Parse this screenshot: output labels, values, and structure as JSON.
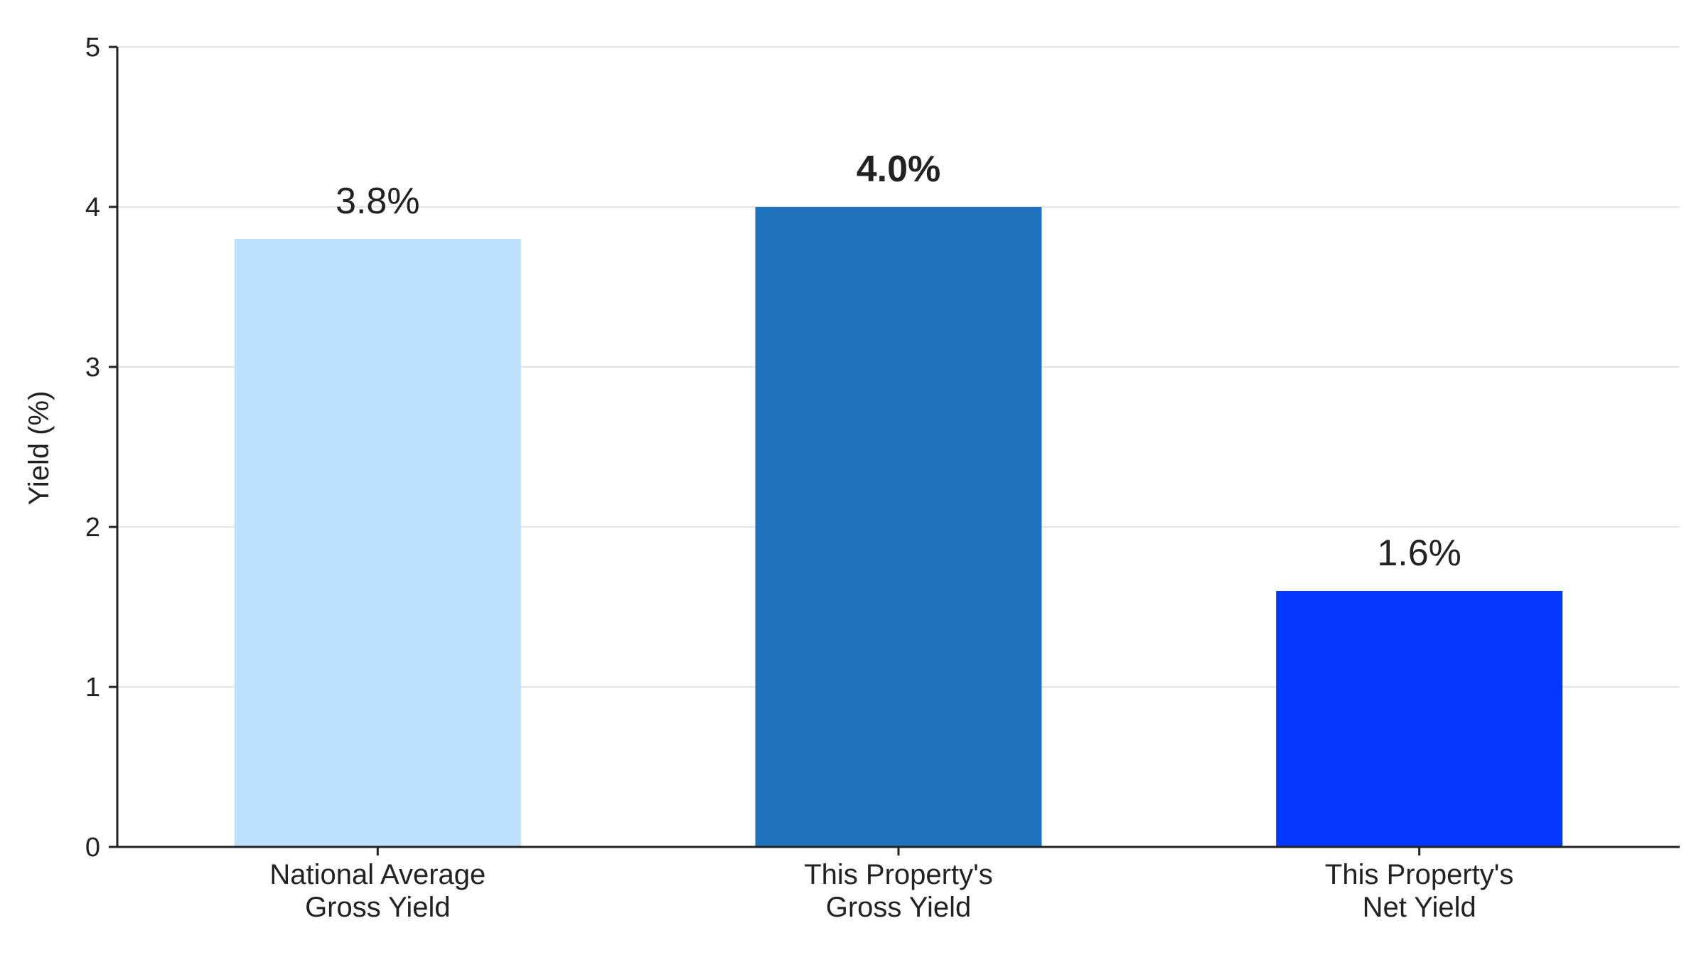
{
  "chart_data": {
    "type": "bar",
    "title": "",
    "xlabel": "",
    "ylabel": "Yield (%)",
    "ylim": [
      0,
      5
    ],
    "yticks": [
      0,
      1,
      2,
      3,
      4,
      5
    ],
    "grid": true,
    "legend": "none",
    "categories": [
      [
        "National Average",
        "Gross Yield"
      ],
      [
        "This Property's",
        "Gross Yield"
      ],
      [
        "This Property's",
        "Net Yield"
      ]
    ],
    "values": [
      3.8,
      4.0,
      1.6
    ],
    "data_labels": [
      "3.8%",
      "4.0%",
      "1.6%"
    ],
    "highlighted_index": 1,
    "colors": [
      "#bde1fd",
      "#1f73bd",
      "#0437ff"
    ]
  }
}
